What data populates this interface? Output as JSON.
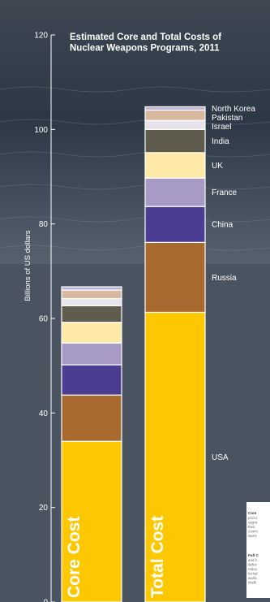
{
  "chart_data": {
    "type": "bar",
    "stacked": true,
    "title_lines": [
      "Estimated Core and Total Costs of",
      "Nuclear Weapons Programs, 2011"
    ],
    "ylabel": "Billions of US dollars",
    "ylim": [
      0,
      120
    ],
    "yticks": [
      0,
      20,
      40,
      60,
      80,
      100,
      120
    ],
    "grid": false,
    "categories": [
      "Core Cost",
      "Total Cost"
    ],
    "series": [
      {
        "name": "USA",
        "color": "#fdc800",
        "values": [
          34.0,
          61.3
        ]
      },
      {
        "name": "Russia",
        "color": "#a86a2e",
        "values": [
          9.8,
          14.8
        ]
      },
      {
        "name": "China",
        "color": "#4b3d91",
        "values": [
          6.4,
          7.6
        ]
      },
      {
        "name": "France",
        "color": "#a79bc6",
        "values": [
          4.6,
          6.0
        ]
      },
      {
        "name": "UK",
        "color": "#ffe9a6",
        "values": [
          4.4,
          5.4
        ]
      },
      {
        "name": "India",
        "color": "#5f5b4d",
        "values": [
          3.5,
          4.9
        ]
      },
      {
        "name": "Israel",
        "color": "#e6e3ec",
        "values": [
          1.5,
          1.9
        ]
      },
      {
        "name": "Pakistan",
        "color": "#d8b9a0",
        "values": [
          1.8,
          2.2
        ]
      },
      {
        "name": "North Korea",
        "color": "#bcb4d6",
        "values": [
          0.7,
          0.7
        ]
      }
    ]
  },
  "notes": {
    "core_title": "Core",
    "core_lines": [
      "procu",
      "upgra",
      "their",
      "comm",
      "warni"
    ],
    "full_title": "Full C",
    "full_lines": [
      "and fi",
      "defen",
      "reduc",
      "includ",
      "warfa",
      "intelli"
    ]
  }
}
